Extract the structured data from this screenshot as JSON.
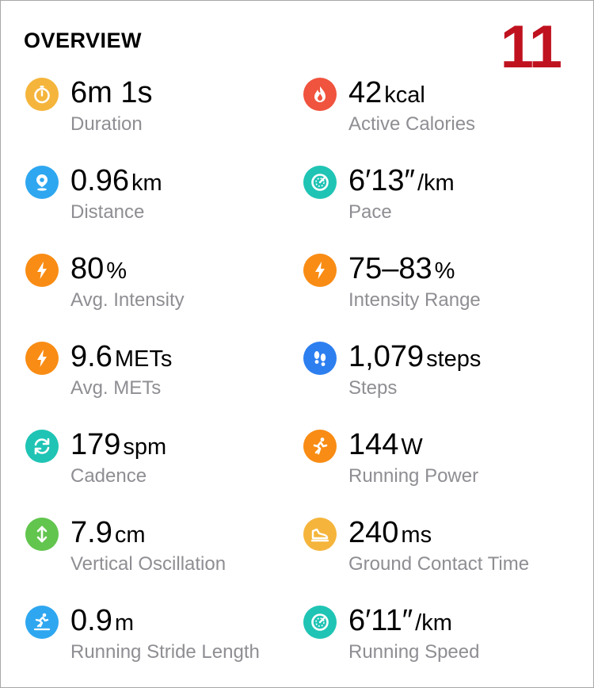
{
  "header": {
    "title": "OVERVIEW",
    "badge": "11"
  },
  "colors": {
    "yellow": "#f5b53c",
    "red": "#f0533e",
    "blue": "#2ea7f0",
    "teal": "#1fc4b4",
    "orange": "#f98c14",
    "steps_blue": "#2d7ff0",
    "green": "#62c54e",
    "badge": "#c0111f"
  },
  "metrics": [
    {
      "value": "6m 1s",
      "unit": "",
      "label": "Duration",
      "icon": "stopwatch-icon"
    },
    {
      "value": "42",
      "unit": "kcal",
      "label": "Active Calories",
      "icon": "flame-icon"
    },
    {
      "value": "0.96",
      "unit": "km",
      "label": "Distance",
      "icon": "location-pin-icon"
    },
    {
      "value": "6′13″",
      "unit": "/km",
      "label": "Pace",
      "icon": "speedometer-icon"
    },
    {
      "value": "80",
      "unit": "%",
      "label": "Avg. Intensity",
      "icon": "lightning-icon"
    },
    {
      "value": "75–83",
      "unit": "%",
      "label": "Intensity Range",
      "icon": "lightning-icon"
    },
    {
      "value": "9.6",
      "unit": "METs",
      "label": "Avg. METs",
      "icon": "lightning-icon"
    },
    {
      "value": "1,079",
      "unit": "steps",
      "label": "Steps",
      "icon": "footprints-icon"
    },
    {
      "value": "179",
      "unit": "spm",
      "label": "Cadence",
      "icon": "cycle-arrows-icon"
    },
    {
      "value": "144",
      "unit": "W",
      "label": "Running Power",
      "icon": "runner-icon"
    },
    {
      "value": "7.9",
      "unit": "cm",
      "label": "Vertical Oscillation",
      "icon": "vertical-arrows-icon"
    },
    {
      "value": "240",
      "unit": "ms",
      "label": "Ground Contact Time",
      "icon": "shoe-icon"
    },
    {
      "value": "0.9",
      "unit": "m",
      "label": "Running Stride Length",
      "icon": "stride-runner-icon"
    },
    {
      "value": "6′11″",
      "unit": "/km",
      "label": "Running Speed",
      "icon": "speedometer-icon"
    }
  ]
}
